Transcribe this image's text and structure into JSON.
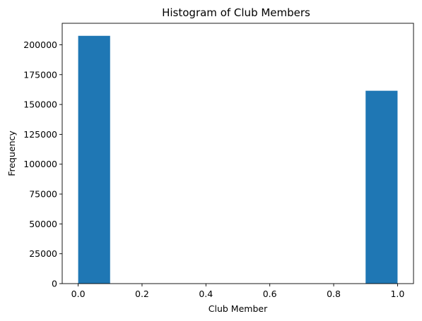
{
  "chart_data": {
    "type": "bar",
    "title": "Histogram of Club Members",
    "xlabel": "Club Member",
    "ylabel": "Frequency",
    "xlim": [
      -0.05,
      1.05
    ],
    "ylim": [
      0,
      218000
    ],
    "bins": [
      {
        "x0": 0.0,
        "x1": 0.1,
        "value": 207500
      },
      {
        "x0": 0.9,
        "x1": 1.0,
        "value": 161500
      }
    ],
    "x_ticks": [
      {
        "value": 0.0,
        "label": "0.0"
      },
      {
        "value": 0.2,
        "label": "0.2"
      },
      {
        "value": 0.4,
        "label": "0.4"
      },
      {
        "value": 0.6,
        "label": "0.6"
      },
      {
        "value": 0.8,
        "label": "0.8"
      },
      {
        "value": 1.0,
        "label": "1.0"
      }
    ],
    "y_ticks": [
      {
        "value": 0,
        "label": "0"
      },
      {
        "value": 25000,
        "label": "25000"
      },
      {
        "value": 50000,
        "label": "50000"
      },
      {
        "value": 75000,
        "label": "75000"
      },
      {
        "value": 100000,
        "label": "100000"
      },
      {
        "value": 125000,
        "label": "125000"
      },
      {
        "value": 150000,
        "label": "150000"
      },
      {
        "value": 175000,
        "label": "175000"
      },
      {
        "value": 200000,
        "label": "200000"
      }
    ],
    "bar_color": "#1f77b4",
    "grid": false,
    "legend": "none"
  }
}
